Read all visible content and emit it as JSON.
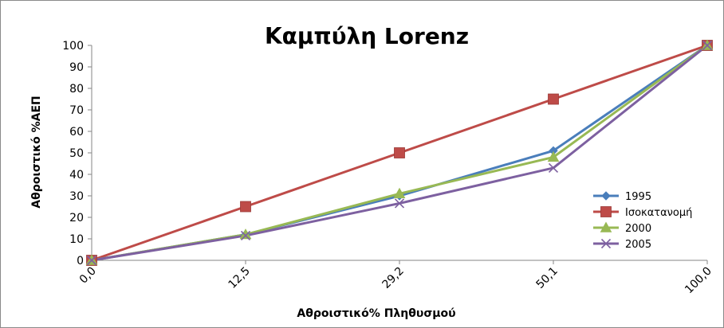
{
  "chart_data": {
    "type": "line",
    "title": "Καμπύλη Lorenz",
    "xlabel": "Αθροιστικό% Πληθυσμού",
    "ylabel": "Αθροιστικό %ΑΕΠ",
    "categories": [
      "0,0",
      "12,5",
      "29,2",
      "50,1",
      "100,0"
    ],
    "ylim": [
      0,
      100
    ],
    "yticks": [
      "0",
      "10",
      "20",
      "30",
      "40",
      "50",
      "60",
      "70",
      "80",
      "90",
      "100"
    ],
    "grid": false,
    "legend_position": "right",
    "series": [
      {
        "name": "1995",
        "values": [
          0,
          12,
          30,
          51,
          100
        ],
        "color": "#4a7ebb",
        "marker": "diamond"
      },
      {
        "name": "Ισοκατανομή",
        "values": [
          0,
          25,
          50,
          75,
          100
        ],
        "color": "#be4b48",
        "marker": "square"
      },
      {
        "name": "2000",
        "values": [
          0,
          12,
          31,
          48,
          100
        ],
        "color": "#98b954",
        "marker": "triangle"
      },
      {
        "name": "2005",
        "values": [
          0,
          11.5,
          26.5,
          43,
          100
        ],
        "color": "#7d60a0",
        "marker": "x"
      }
    ]
  }
}
